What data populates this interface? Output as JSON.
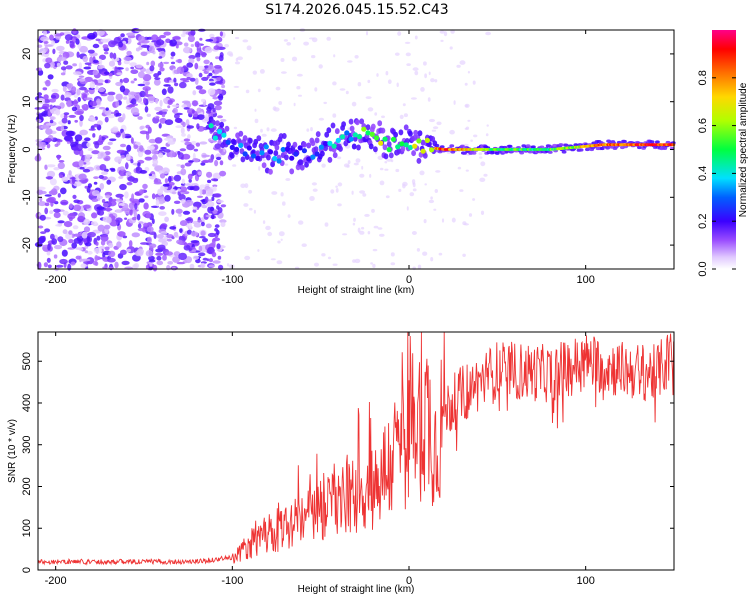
{
  "chart_data": [
    {
      "type": "heatmap",
      "title": "S174.2026.045.15.52.C43",
      "xlabel": "Height of straight line (km)",
      "ylabel": "Frequency (Hz)",
      "xlim": [
        -210,
        150
      ],
      "ylim": [
        -25,
        25
      ],
      "x_ticks": [
        -200,
        -100,
        0,
        100
      ],
      "y_ticks": [
        -20,
        -10,
        0,
        10,
        20
      ],
      "colorbar": {
        "label": "Normalized spectral amplitude",
        "range": [
          0,
          1
        ],
        "ticks": [
          0.0,
          0.2,
          0.4,
          0.6,
          0.8
        ],
        "colormap": "rainbow (white, violet, blue, cyan, green, yellow, orange, red, magenta)"
      },
      "ridge": {
        "description": "Narrowband signal near 0 Hz strengthening with height",
        "x": [
          -110,
          -100,
          -80,
          -60,
          -40,
          -30,
          -20,
          -10,
          0,
          10,
          20,
          50,
          80,
          110,
          140
        ],
        "frequency": [
          4,
          1,
          -1,
          -1,
          2,
          4,
          3,
          1,
          1,
          0.5,
          0,
          0,
          0,
          1,
          1
        ],
        "amplitude": [
          0.35,
          0.25,
          0.25,
          0.25,
          0.35,
          0.45,
          0.55,
          0.6,
          0.55,
          0.6,
          0.85,
          0.5,
          0.5,
          0.8,
          0.9
        ]
      },
      "noise_region_x": [
        -210,
        -105
      ],
      "noise_amplitude": 0.15
    },
    {
      "type": "line",
      "title": "",
      "xlabel": "Height of straight line (km)",
      "ylabel": "SNR (10 * v/v)",
      "xlim": [
        -210,
        150
      ],
      "ylim": [
        0,
        570
      ],
      "x_ticks": [
        -200,
        -100,
        0,
        100
      ],
      "y_ticks": [
        0,
        100,
        200,
        300,
        400,
        500
      ],
      "series": [
        {
          "name": "SNR",
          "color": "#ee3333",
          "envelope_x": [
            -210,
            -120,
            -100,
            -90,
            -80,
            -60,
            -40,
            -20,
            -10,
            0,
            10,
            15,
            20,
            30,
            50,
            80,
            100,
            120,
            140,
            150
          ],
          "envelope_y": [
            20,
            20,
            30,
            60,
            80,
            120,
            160,
            200,
            260,
            330,
            380,
            300,
            380,
            420,
            480,
            470,
            500,
            480,
            470,
            520
          ]
        }
      ]
    }
  ]
}
